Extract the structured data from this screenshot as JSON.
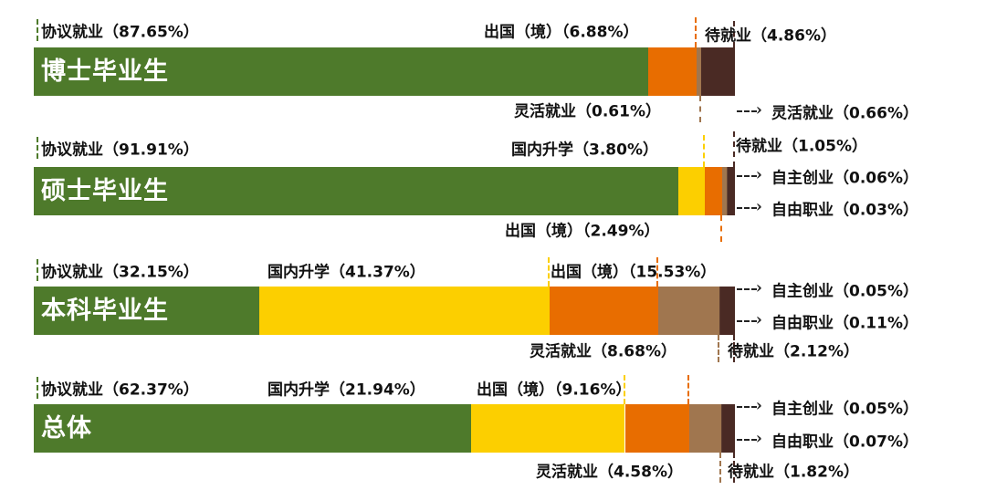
{
  "chart_data": {
    "type": "bar",
    "orientation": "horizontal",
    "stacked": true,
    "xlim": [
      0,
      100
    ],
    "unit": "%",
    "categories": [
      "博士毕业生",
      "硕士毕业生",
      "本科毕业生",
      "总体"
    ],
    "series": [
      {
        "name": "协议就业",
        "color": "#4e7a2b",
        "values": [
          87.65,
          91.91,
          32.15,
          62.37
        ]
      },
      {
        "name": "国内升学",
        "color": "#fccf00",
        "values": [
          null,
          3.8,
          41.37,
          21.94
        ]
      },
      {
        "name": "出国（境）",
        "color": "#e86d00",
        "values": [
          6.88,
          2.49,
          15.53,
          9.16
        ]
      },
      {
        "name": "灵活就业",
        "color": "#a0764f",
        "values": [
          0.61,
          0.66,
          8.68,
          4.58
        ]
      },
      {
        "name": "自主创业",
        "color": "#6b4a36",
        "values": [
          null,
          0.06,
          0.05,
          0.05
        ]
      },
      {
        "name": "自由职业",
        "color": "#5a3a2e",
        "values": [
          null,
          0.03,
          0.11,
          0.07
        ]
      },
      {
        "name": "待就业",
        "color": "#4a2a24",
        "values": [
          4.86,
          1.05,
          2.12,
          1.82
        ]
      }
    ],
    "grid": false,
    "legend": "none"
  }
}
